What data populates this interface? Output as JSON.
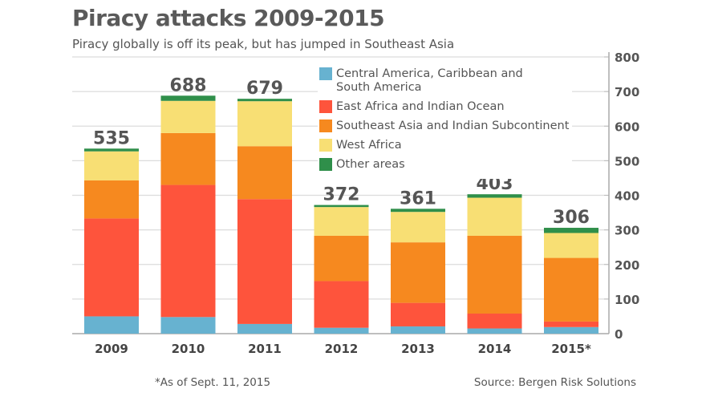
{
  "chart_data": {
    "type": "bar",
    "stacked": true,
    "title": "Piracy attacks 2009-2015",
    "subtitle": "Piracy globally is off its peak, but has jumped in Southeast Asia",
    "categories": [
      "2009",
      "2010",
      "2011",
      "2012",
      "2013",
      "2014",
      "2015*"
    ],
    "totals": [
      "535",
      "688",
      "679",
      "372",
      "361",
      "403",
      "306"
    ],
    "series": [
      {
        "name": "Central America, Caribbean and South America",
        "color": "#67b2d0",
        "values": [
          50,
          48,
          28,
          17,
          21,
          15,
          19
        ]
      },
      {
        "name": "East Africa and Indian Ocean",
        "color": "#fe543c",
        "values": [
          283,
          382,
          361,
          135,
          68,
          43,
          16
        ]
      },
      {
        "name": "Southeast Asia and Indian Subcontinent",
        "color": "#f6891f",
        "values": [
          110,
          150,
          153,
          131,
          175,
          225,
          184
        ]
      },
      {
        "name": "West Africa",
        "color": "#f8df74",
        "values": [
          84,
          93,
          130,
          83,
          88,
          110,
          72
        ]
      },
      {
        "name": "Other areas",
        "color": "#2f8f4a",
        "values": [
          8,
          15,
          7,
          6,
          9,
          10,
          15
        ]
      }
    ],
    "legend_order": [
      0,
      1,
      2,
      3,
      4
    ],
    "ylim": [
      0,
      800
    ],
    "yticks": [
      "0",
      "100",
      "200",
      "300",
      "400",
      "500",
      "600",
      "700",
      "800"
    ],
    "y_axis_side": "right",
    "grid": true,
    "legend_placement": "top-center",
    "note": "*As of Sept. 11, 2015",
    "source": "Source: Bergen Risk Solutions"
  }
}
